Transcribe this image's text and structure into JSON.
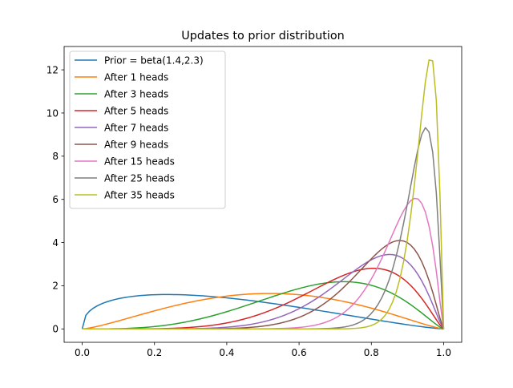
{
  "chart_data": {
    "type": "line",
    "title": "Updates to prior distribution",
    "xlabel": "",
    "ylabel": "",
    "xlim": [
      -0.05,
      1.05
    ],
    "ylim": [
      -0.62,
      13.08
    ],
    "xticks": [
      0.0,
      0.2,
      0.4,
      0.6,
      0.8,
      1.0
    ],
    "xtick_labels": [
      "0.0",
      "0.2",
      "0.4",
      "0.6",
      "0.8",
      "1.0"
    ],
    "yticks": [
      0,
      2,
      4,
      6,
      8,
      10,
      12
    ],
    "ytick_labels": [
      "0",
      "2",
      "4",
      "6",
      "8",
      "10",
      "12"
    ],
    "grid": false,
    "legend_position": "top-left",
    "x_samples": 100,
    "series": [
      {
        "name": "Prior = beta(1.4,2.3)",
        "color": "#1f77b4",
        "alpha": 1.4,
        "beta": 2.3
      },
      {
        "name": "After 1 heads",
        "color": "#ff7f0e",
        "alpha": 2.4,
        "beta": 2.3
      },
      {
        "name": "After 3 heads",
        "color": "#2ca02c",
        "alpha": 4.4,
        "beta": 2.3
      },
      {
        "name": "After 5 heads",
        "color": "#d62728",
        "alpha": 6.4,
        "beta": 2.3
      },
      {
        "name": "After 7 heads",
        "color": "#9467bd",
        "alpha": 8.4,
        "beta": 2.3
      },
      {
        "name": "After 9 heads",
        "color": "#8c564b",
        "alpha": 10.4,
        "beta": 2.3
      },
      {
        "name": "After 15 heads",
        "color": "#e377c2",
        "alpha": 16.4,
        "beta": 2.3
      },
      {
        "name": "After 25 heads",
        "color": "#7f7f7f",
        "alpha": 26.4,
        "beta": 2.3
      },
      {
        "name": "After 35 heads",
        "color": "#bcbd22",
        "alpha": 36.4,
        "beta": 2.3
      }
    ]
  }
}
